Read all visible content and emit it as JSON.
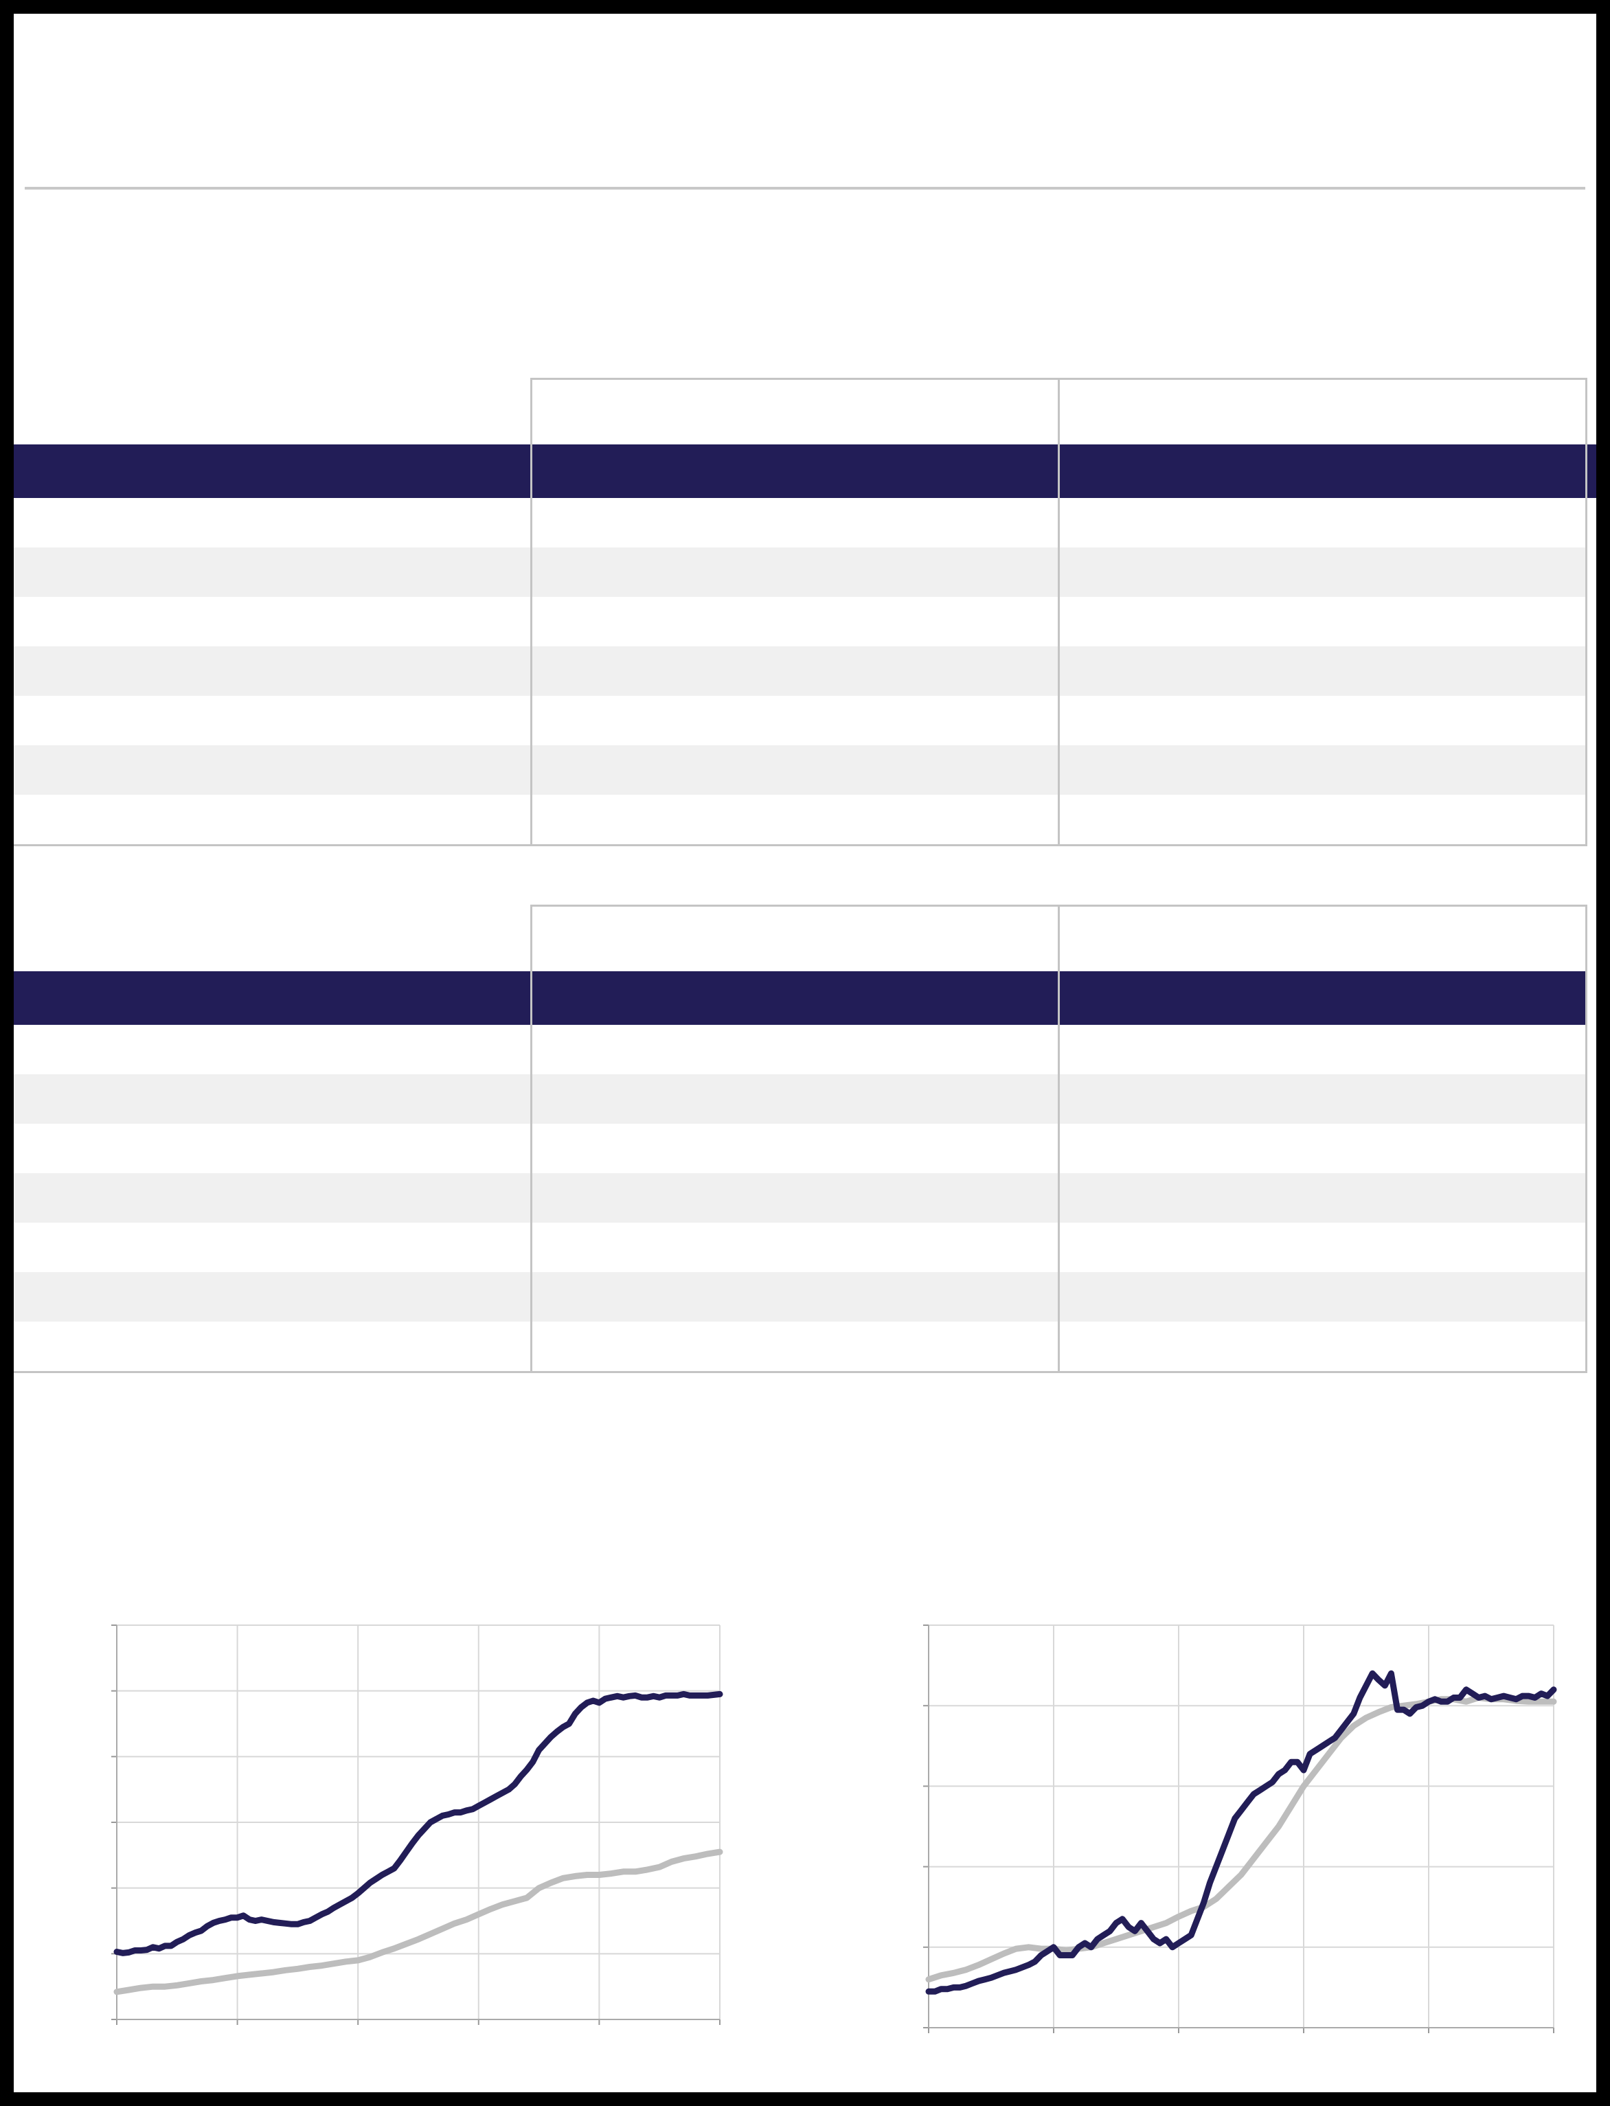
{
  "tables": [
    {
      "id": "table-1",
      "header_cells": [
        "",
        "",
        ""
      ],
      "rows": [
        [
          "",
          "",
          ""
        ],
        [
          "",
          "",
          ""
        ],
        [
          "",
          "",
          ""
        ],
        [
          "",
          "",
          ""
        ],
        [
          "",
          "",
          ""
        ],
        [
          "",
          "",
          ""
        ],
        [
          "",
          "",
          ""
        ]
      ]
    },
    {
      "id": "table-2",
      "header_cells": [
        "",
        "",
        ""
      ],
      "rows": [
        [
          "",
          "",
          ""
        ],
        [
          "",
          "",
          ""
        ],
        [
          "",
          "",
          ""
        ],
        [
          "",
          "",
          ""
        ],
        [
          "",
          "",
          ""
        ],
        [
          "",
          "",
          ""
        ],
        [
          "",
          "",
          ""
        ]
      ]
    }
  ],
  "colors": {
    "navy": "#221d57",
    "gray_series": "#bdbdbd",
    "stripe": "#f0f0f0",
    "grid": "#d8d8d8",
    "border": "#c4c4c4"
  },
  "chart_data": [
    {
      "type": "line",
      "title": "",
      "xlabel": "",
      "ylabel": "",
      "xlim": [
        0,
        5
      ],
      "ylim": [
        0,
        6
      ],
      "grid": true,
      "series": [
        {
          "color": "#221d57",
          "x": [
            0,
            0.05,
            0.1,
            0.15,
            0.2,
            0.25,
            0.3,
            0.35,
            0.4,
            0.45,
            0.5,
            0.55,
            0.6,
            0.65,
            0.7,
            0.75,
            0.8,
            0.85,
            0.9,
            0.95,
            1.0,
            1.05,
            1.1,
            1.15,
            1.2,
            1.25,
            1.3,
            1.35,
            1.4,
            1.45,
            1.5,
            1.55,
            1.6,
            1.65,
            1.7,
            1.75,
            1.8,
            1.85,
            1.9,
            1.95,
            2.0,
            2.05,
            2.1,
            2.15,
            2.2,
            2.25,
            2.3,
            2.35,
            2.4,
            2.45,
            2.5,
            2.55,
            2.6,
            2.65,
            2.7,
            2.75,
            2.8,
            2.85,
            2.9,
            2.95,
            3.0,
            3.05,
            3.1,
            3.15,
            3.2,
            3.25,
            3.3,
            3.35,
            3.4,
            3.45,
            3.5,
            3.55,
            3.6,
            3.65,
            3.7,
            3.75,
            3.8,
            3.85,
            3.9,
            3.95,
            4.0,
            4.05,
            4.1,
            4.15,
            4.2,
            4.25,
            4.3,
            4.35,
            4.4,
            4.45,
            4.5,
            4.55,
            4.6,
            4.65,
            4.7,
            4.75,
            4.8,
            4.85,
            4.9,
            4.95,
            5.0
          ],
          "values": [
            1.03,
            1.01,
            1.02,
            1.05,
            1.05,
            1.06,
            1.1,
            1.08,
            1.12,
            1.12,
            1.18,
            1.22,
            1.28,
            1.32,
            1.35,
            1.42,
            1.47,
            1.5,
            1.52,
            1.55,
            1.55,
            1.58,
            1.52,
            1.5,
            1.52,
            1.5,
            1.48,
            1.47,
            1.46,
            1.45,
            1.45,
            1.48,
            1.5,
            1.55,
            1.6,
            1.64,
            1.7,
            1.75,
            1.8,
            1.85,
            1.92,
            2.0,
            2.08,
            2.14,
            2.2,
            2.25,
            2.3,
            2.42,
            2.55,
            2.68,
            2.8,
            2.9,
            3.0,
            3.05,
            3.1,
            3.12,
            3.15,
            3.15,
            3.18,
            3.2,
            3.25,
            3.3,
            3.35,
            3.4,
            3.45,
            3.5,
            3.58,
            3.7,
            3.8,
            3.92,
            4.1,
            4.2,
            4.3,
            4.38,
            4.45,
            4.5,
            4.65,
            4.75,
            4.82,
            4.85,
            4.82,
            4.88,
            4.9,
            4.92,
            4.9,
            4.92,
            4.93,
            4.9,
            4.9,
            4.92,
            4.9,
            4.93,
            4.93,
            4.93,
            4.95,
            4.93,
            4.93,
            4.93,
            4.93,
            4.94,
            4.95
          ]
        },
        {
          "color": "#bdbdbd",
          "x": [
            0,
            0.1,
            0.2,
            0.3,
            0.4,
            0.5,
            0.6,
            0.7,
            0.8,
            0.9,
            1.0,
            1.1,
            1.2,
            1.3,
            1.4,
            1.5,
            1.6,
            1.7,
            1.8,
            1.9,
            2.0,
            2.1,
            2.2,
            2.3,
            2.4,
            2.5,
            2.6,
            2.7,
            2.8,
            2.9,
            3.0,
            3.1,
            3.2,
            3.3,
            3.4,
            3.5,
            3.6,
            3.7,
            3.8,
            3.9,
            4.0,
            4.1,
            4.2,
            4.3,
            4.4,
            4.5,
            4.6,
            4.7,
            4.8,
            4.9,
            5.0
          ],
          "values": [
            0.42,
            0.45,
            0.48,
            0.5,
            0.5,
            0.52,
            0.55,
            0.58,
            0.6,
            0.63,
            0.66,
            0.68,
            0.7,
            0.72,
            0.75,
            0.77,
            0.8,
            0.82,
            0.85,
            0.88,
            0.9,
            0.95,
            1.02,
            1.08,
            1.15,
            1.22,
            1.3,
            1.38,
            1.46,
            1.52,
            1.6,
            1.68,
            1.75,
            1.8,
            1.85,
            2.0,
            2.08,
            2.15,
            2.18,
            2.2,
            2.2,
            2.22,
            2.25,
            2.25,
            2.28,
            2.32,
            2.4,
            2.45,
            2.48,
            2.52,
            2.55
          ]
        }
      ]
    },
    {
      "type": "line",
      "title": "",
      "xlabel": "",
      "ylabel": "",
      "xlim": [
        0,
        5
      ],
      "ylim": [
        0,
        5
      ],
      "grid": true,
      "series": [
        {
          "color": "#221d57",
          "x": [
            0,
            0.05,
            0.1,
            0.15,
            0.2,
            0.25,
            0.3,
            0.35,
            0.4,
            0.45,
            0.5,
            0.55,
            0.6,
            0.65,
            0.7,
            0.75,
            0.8,
            0.85,
            0.9,
            0.95,
            1.0,
            1.05,
            1.1,
            1.15,
            1.2,
            1.25,
            1.3,
            1.35,
            1.4,
            1.45,
            1.5,
            1.55,
            1.6,
            1.65,
            1.7,
            1.75,
            1.8,
            1.85,
            1.9,
            1.95,
            2.0,
            2.05,
            2.1,
            2.15,
            2.2,
            2.25,
            2.3,
            2.35,
            2.4,
            2.45,
            2.5,
            2.55,
            2.6,
            2.65,
            2.7,
            2.75,
            2.8,
            2.85,
            2.9,
            2.95,
            3.0,
            3.05,
            3.1,
            3.15,
            3.2,
            3.25,
            3.3,
            3.35,
            3.4,
            3.45,
            3.5,
            3.55,
            3.6,
            3.65,
            3.7,
            3.75,
            3.8,
            3.85,
            3.9,
            3.95,
            4.0,
            4.05,
            4.1,
            4.15,
            4.2,
            4.25,
            4.3,
            4.35,
            4.4,
            4.45,
            4.5,
            4.55,
            4.6,
            4.65,
            4.7,
            4.75,
            4.8,
            4.85,
            4.9,
            4.95,
            5.0
          ],
          "values": [
            0.45,
            0.45,
            0.48,
            0.48,
            0.5,
            0.5,
            0.52,
            0.55,
            0.58,
            0.6,
            0.62,
            0.65,
            0.68,
            0.7,
            0.72,
            0.75,
            0.78,
            0.82,
            0.9,
            0.95,
            1.0,
            0.9,
            0.9,
            0.9,
            1.0,
            1.05,
            1.0,
            1.1,
            1.15,
            1.2,
            1.3,
            1.35,
            1.25,
            1.2,
            1.3,
            1.2,
            1.1,
            1.05,
            1.1,
            1.0,
            1.05,
            1.1,
            1.15,
            1.35,
            1.55,
            1.8,
            2.0,
            2.2,
            2.4,
            2.6,
            2.7,
            2.8,
            2.9,
            2.95,
            3.0,
            3.05,
            3.15,
            3.2,
            3.3,
            3.3,
            3.2,
            3.4,
            3.45,
            3.5,
            3.55,
            3.6,
            3.7,
            3.8,
            3.9,
            4.1,
            4.25,
            4.4,
            4.32,
            4.25,
            4.4,
            3.95,
            3.95,
            3.9,
            3.98,
            4.0,
            4.05,
            4.08,
            4.05,
            4.05,
            4.1,
            4.1,
            4.2,
            4.15,
            4.1,
            4.12,
            4.08,
            4.1,
            4.12,
            4.1,
            4.08,
            4.12,
            4.12,
            4.1,
            4.15,
            4.12,
            4.2
          ]
        },
        {
          "color": "#bdbdbd",
          "x": [
            0,
            0.1,
            0.2,
            0.3,
            0.4,
            0.5,
            0.6,
            0.7,
            0.8,
            0.9,
            1.0,
            1.1,
            1.2,
            1.3,
            1.4,
            1.5,
            1.6,
            1.7,
            1.8,
            1.9,
            2.0,
            2.1,
            2.2,
            2.3,
            2.4,
            2.5,
            2.6,
            2.7,
            2.8,
            2.9,
            3.0,
            3.1,
            3.2,
            3.3,
            3.4,
            3.5,
            3.6,
            3.7,
            3.8,
            3.9,
            4.0,
            4.1,
            4.2,
            4.3,
            4.4,
            4.5,
            4.6,
            4.7,
            4.8,
            4.9,
            5.0
          ],
          "values": [
            0.6,
            0.65,
            0.68,
            0.72,
            0.78,
            0.85,
            0.92,
            0.98,
            1.0,
            0.98,
            0.98,
            0.96,
            0.98,
            1.0,
            1.05,
            1.1,
            1.15,
            1.2,
            1.25,
            1.3,
            1.38,
            1.45,
            1.5,
            1.6,
            1.75,
            1.9,
            2.1,
            2.3,
            2.5,
            2.75,
            3.0,
            3.2,
            3.4,
            3.6,
            3.75,
            3.85,
            3.92,
            3.98,
            4.0,
            4.02,
            4.05,
            4.08,
            4.08,
            4.05,
            4.1,
            4.08,
            4.08,
            4.06,
            4.05,
            4.05,
            4.05
          ]
        }
      ]
    }
  ]
}
